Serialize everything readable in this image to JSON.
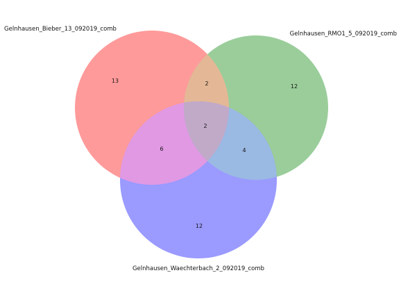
{
  "chart_data": {
    "type": "venn3",
    "sets": [
      {
        "name": "Gelnhausen_Bieber_13_092019_comb",
        "color": "#ff0000"
      },
      {
        "name": "Gelnhausen_RMO1_5_092019_comb",
        "color": "#008000"
      },
      {
        "name": "Gelnhausen_Waechterbach_2_092019_comb",
        "color": "#0000ff"
      }
    ],
    "regions": {
      "only_1": "13",
      "only_2": "12",
      "only_3": "12",
      "1_2": "2",
      "1_3": "6",
      "2_3": "4",
      "1_2_3": "2"
    },
    "colors": {
      "set1": "#ff9a9a",
      "set2": "#9acd9a",
      "set3": "#9a9aff",
      "set1_set2": "#e4b896",
      "set1_set3": "#e199e3",
      "set2_set3": "#9ab9e3",
      "all": "#c1a9c8"
    }
  }
}
